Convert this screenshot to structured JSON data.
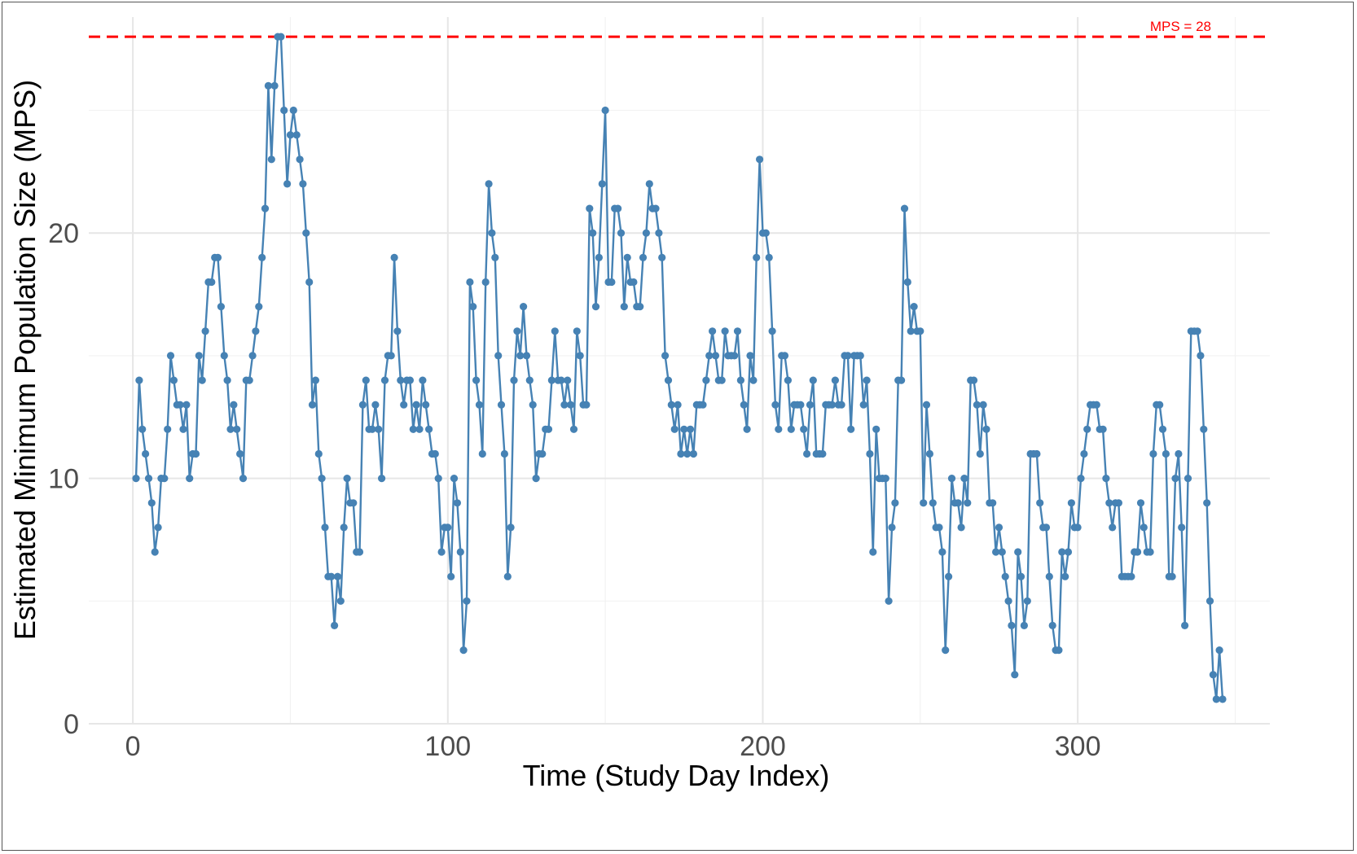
{
  "chart_data": {
    "type": "line",
    "title": "",
    "xlabel": "Time (Study Day Index)",
    "ylabel": "Estimated Minimum Population Size (MPS)",
    "xlim": [
      -14,
      361
    ],
    "ylim": [
      0,
      28.8
    ],
    "xticks": [
      0,
      100,
      200,
      300
    ],
    "yticks": [
      0,
      10,
      20
    ],
    "grid": true,
    "legend": "none",
    "reference_line": {
      "y": 28,
      "label": "MPS = 28",
      "color": "#ff0000",
      "style": "dashed"
    },
    "series": [
      {
        "name": "MPS",
        "color": "#4682b4",
        "x": [
          1,
          2,
          3,
          4,
          5,
          6,
          7,
          8,
          9,
          10,
          11,
          12,
          13,
          14,
          15,
          16,
          17,
          18,
          19,
          20,
          21,
          22,
          23,
          24,
          25,
          26,
          27,
          28,
          29,
          30,
          31,
          32,
          33,
          34,
          35,
          36,
          37,
          38,
          39,
          40,
          41,
          42,
          43,
          44,
          45,
          46,
          47,
          48,
          49,
          50,
          51,
          52,
          53,
          54,
          55,
          56,
          57,
          58,
          59,
          60,
          61,
          62,
          63,
          64,
          65,
          66,
          67,
          68,
          69,
          70,
          71,
          72,
          73,
          74,
          75,
          76,
          77,
          78,
          79,
          80,
          81,
          82,
          83,
          84,
          85,
          86,
          87,
          88,
          89,
          90,
          91,
          92,
          93,
          94,
          95,
          96,
          97,
          98,
          99,
          100,
          101,
          102,
          103,
          104,
          105,
          106,
          107,
          108,
          109,
          110,
          111,
          112,
          113,
          114,
          115,
          116,
          117,
          118,
          119,
          120,
          121,
          122,
          123,
          124,
          125,
          126,
          127,
          128,
          129,
          130,
          131,
          132,
          133,
          134,
          135,
          136,
          137,
          138,
          139,
          140,
          141,
          142,
          143,
          144,
          145,
          146,
          147,
          148,
          149,
          150,
          151,
          152,
          153,
          154,
          155,
          156,
          157,
          158,
          159,
          160,
          161,
          162,
          163,
          164,
          165,
          166,
          167,
          168,
          169,
          170,
          171,
          172,
          173,
          174,
          175,
          176,
          177,
          178,
          179,
          180,
          181,
          182,
          183,
          184,
          185,
          186,
          187,
          188,
          189,
          190,
          191,
          192,
          193,
          194,
          195,
          196,
          197,
          198,
          199,
          200,
          201,
          202,
          203,
          204,
          205,
          206,
          207,
          208,
          209,
          210,
          211,
          212,
          213,
          214,
          215,
          216,
          217,
          218,
          219,
          220,
          221,
          222,
          223,
          224,
          225,
          226,
          227,
          228,
          229,
          230,
          231,
          232,
          233,
          234,
          235,
          236,
          237,
          238,
          239,
          240,
          241,
          242,
          243,
          244,
          245,
          246,
          247,
          248,
          249,
          250,
          251,
          252,
          253,
          254,
          255,
          256,
          257,
          258,
          259,
          260,
          261,
          262,
          263,
          264,
          265,
          266,
          267,
          268,
          269,
          270,
          271,
          272,
          273,
          274,
          275,
          276,
          277,
          278,
          279,
          280,
          281,
          282,
          283,
          284,
          285,
          286,
          287,
          288,
          289,
          290,
          291,
          292,
          293,
          294,
          295,
          296,
          297,
          298,
          299,
          300,
          301,
          302,
          303,
          304,
          305,
          306,
          307,
          308,
          309,
          310,
          311,
          312,
          313,
          314,
          315,
          316,
          317,
          318,
          319,
          320,
          321,
          322,
          323,
          324,
          325,
          326,
          327,
          328,
          329,
          330,
          331,
          332,
          333,
          334,
          335,
          336,
          337,
          338,
          339,
          340,
          341,
          342,
          343,
          344,
          345,
          346
        ],
        "y": [
          10,
          14,
          12,
          11,
          10,
          9,
          7,
          8,
          10,
          10,
          12,
          15,
          14,
          13,
          13,
          12,
          13,
          10,
          11,
          11,
          15,
          14,
          16,
          18,
          18,
          19,
          19,
          17,
          15,
          14,
          12,
          13,
          12,
          11,
          10,
          14,
          14,
          15,
          16,
          17,
          19,
          21,
          26,
          23,
          26,
          28,
          28,
          25,
          22,
          24,
          25,
          24,
          23,
          22,
          20,
          18,
          13,
          14,
          11,
          10,
          8,
          6,
          6,
          4,
          6,
          5,
          8,
          10,
          9,
          9,
          7,
          7,
          13,
          14,
          12,
          12,
          13,
          12,
          10,
          14,
          15,
          15,
          19,
          16,
          14,
          13,
          14,
          14,
          12,
          13,
          12,
          14,
          13,
          12,
          11,
          11,
          10,
          7,
          8,
          8,
          6,
          10,
          9,
          7,
          3,
          5,
          18,
          17,
          14,
          13,
          11,
          18,
          22,
          20,
          19,
          15,
          13,
          11,
          6,
          8,
          14,
          16,
          15,
          17,
          15,
          14,
          13,
          10,
          11,
          11,
          12,
          12,
          14,
          16,
          14,
          14,
          13,
          14,
          13,
          12,
          16,
          15,
          13,
          13,
          21,
          20,
          17,
          19,
          22,
          25,
          18,
          18,
          21,
          21,
          20,
          17,
          19,
          18,
          18,
          17,
          17,
          19,
          20,
          22,
          21,
          21,
          20,
          19,
          15,
          14,
          13,
          12,
          13,
          11,
          12,
          11,
          12,
          11,
          13,
          13,
          13,
          14,
          15,
          16,
          15,
          14,
          14,
          16,
          15,
          15,
          15,
          16,
          14,
          13,
          12,
          15,
          14,
          19,
          23,
          20,
          20,
          19,
          16,
          13,
          12,
          15,
          15,
          14,
          12,
          13,
          13,
          13,
          12,
          11,
          13,
          14,
          11,
          11,
          11,
          13,
          13,
          13,
          14,
          13,
          13,
          15,
          15,
          12,
          15,
          15,
          15,
          13,
          14,
          11,
          7,
          12,
          10,
          10,
          10,
          5,
          8,
          9,
          14,
          14,
          21,
          18,
          16,
          17,
          16,
          16,
          9,
          13,
          11,
          9,
          8,
          8,
          7,
          3,
          6,
          10,
          9,
          9,
          8,
          10,
          9,
          14,
          14,
          13,
          11,
          13,
          12,
          9,
          9,
          7,
          8,
          7,
          6,
          5,
          4,
          2,
          7,
          6,
          4,
          5,
          11,
          11,
          11,
          9,
          8,
          8,
          6,
          4,
          3,
          3,
          7,
          6,
          7,
          9,
          8,
          8,
          10,
          11,
          12,
          13,
          13,
          13,
          12,
          12,
          10,
          9,
          8,
          9,
          9,
          6,
          6,
          6,
          6,
          7,
          7,
          9,
          8,
          7,
          7,
          11,
          13,
          13,
          12,
          11,
          6,
          6,
          10,
          11,
          8,
          4,
          10,
          16,
          16,
          16,
          15,
          12,
          9,
          5,
          2,
          1,
          3,
          1
        ]
      }
    ]
  }
}
